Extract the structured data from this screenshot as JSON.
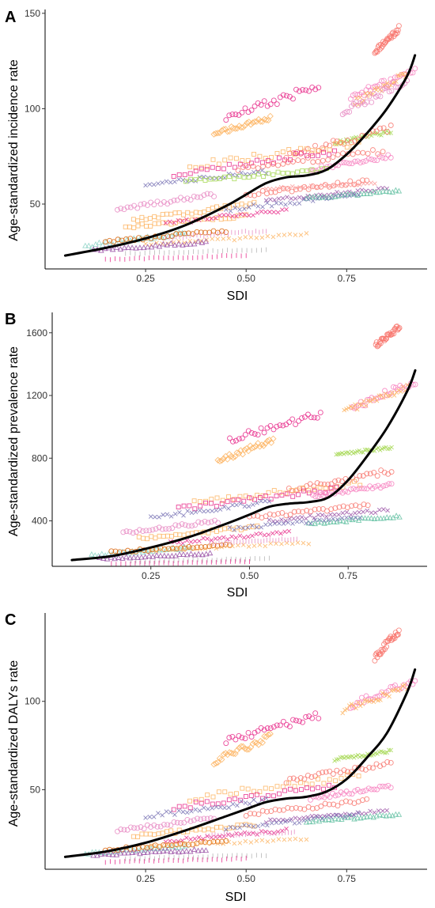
{
  "palette": [
    "#f8766d",
    "#fb9a99",
    "#e7298a",
    "#f781bf",
    "#fdb462",
    "#ff7f00",
    "#a6d854",
    "#8dd3c7",
    "#b3b3b3",
    "#984ea3",
    "#7570b3",
    "#e78ac3",
    "#d95f02",
    "#66c2a5"
  ],
  "fit_color": "#000000",
  "chart_data": [
    {
      "panel": "A",
      "type": "scatter",
      "xlabel": "SDI",
      "ylabel": "Age-standardized incidence rate",
      "xlim": [
        0.0,
        0.95
      ],
      "ylim": [
        16,
        152
      ],
      "xticks": [
        0.25,
        0.5,
        0.75
      ],
      "xtick_labels": [
        "0.25",
        "0.50",
        "0.75"
      ],
      "yticks": [
        50,
        100,
        150
      ],
      "ytick_labels": [
        "50",
        "100",
        "150"
      ],
      "grid": false,
      "fit": {
        "x": [
          0.05,
          0.15,
          0.25,
          0.35,
          0.45,
          0.5,
          0.55,
          0.6,
          0.65,
          0.7,
          0.75,
          0.8,
          0.85,
          0.9,
          0.92
        ],
        "y": [
          23,
          27,
          32,
          39,
          49,
          55,
          61,
          64,
          65,
          68,
          76,
          87,
          100,
          117,
          128
        ]
      },
      "series": [
        {
          "x0": 0.82,
          "x1": 0.88,
          "y0": 130,
          "y1": 142,
          "marker": "circle",
          "color": "#f8766d"
        },
        {
          "x0": 0.76,
          "x1": 0.92,
          "y0": 106,
          "y1": 120,
          "marker": "circle",
          "color": "#f781bf"
        },
        {
          "x0": 0.77,
          "x1": 0.9,
          "y0": 103,
          "y1": 118,
          "marker": "cross",
          "color": "#fdb462"
        },
        {
          "x0": 0.74,
          "x1": 0.9,
          "y0": 98,
          "y1": 115,
          "marker": "circle",
          "color": "#e78ac3"
        },
        {
          "x0": 0.45,
          "x1": 0.68,
          "y0": 95,
          "y1": 112,
          "marker": "circle",
          "color": "#e7298a"
        },
        {
          "x0": 0.72,
          "x1": 0.86,
          "y0": 82,
          "y1": 88,
          "marker": "cross",
          "color": "#a6d854"
        },
        {
          "x0": 0.42,
          "x1": 0.56,
          "y0": 87,
          "y1": 95,
          "marker": "diamond",
          "color": "#fdb462"
        },
        {
          "x0": 0.6,
          "x1": 0.86,
          "y0": 75,
          "y1": 90,
          "marker": "circle",
          "color": "#f8766d"
        },
        {
          "x0": 0.36,
          "x1": 0.78,
          "y0": 70,
          "y1": 82,
          "marker": "square",
          "color": "#fdb462"
        },
        {
          "x0": 0.32,
          "x1": 0.72,
          "y0": 65,
          "y1": 78,
          "marker": "square",
          "color": "#e7298a"
        },
        {
          "x0": 0.48,
          "x1": 0.84,
          "y0": 68,
          "y1": 78,
          "marker": "circle",
          "color": "#f8766d"
        },
        {
          "x0": 0.66,
          "x1": 0.86,
          "y0": 68,
          "y1": 75,
          "marker": "circle",
          "color": "#f781bf"
        },
        {
          "x0": 0.25,
          "x1": 0.55,
          "y0": 60,
          "y1": 67,
          "marker": "cross",
          "color": "#7570b3"
        },
        {
          "x0": 0.35,
          "x1": 0.7,
          "y0": 62,
          "y1": 68,
          "marker": "square",
          "color": "#a6d854"
        },
        {
          "x0": 0.5,
          "x1": 0.8,
          "y0": 55,
          "y1": 62,
          "marker": "circle",
          "color": "#f8766d"
        },
        {
          "x0": 0.55,
          "x1": 0.85,
          "y0": 52,
          "y1": 58,
          "marker": "cross",
          "color": "#984ea3"
        },
        {
          "x0": 0.65,
          "x1": 0.88,
          "y0": 53,
          "y1": 57,
          "marker": "triangle",
          "color": "#66c2a5"
        },
        {
          "x0": 0.55,
          "x1": 0.82,
          "y0": 58,
          "y1": 61,
          "marker": "cross",
          "color": "#fb9a99"
        },
        {
          "x0": 0.18,
          "x1": 0.42,
          "y0": 47,
          "y1": 55,
          "marker": "circle",
          "color": "#e78ac3"
        },
        {
          "x0": 0.22,
          "x1": 0.52,
          "y0": 42,
          "y1": 50,
          "marker": "square",
          "color": "#fdb462"
        },
        {
          "x0": 0.2,
          "x1": 0.5,
          "y0": 38,
          "y1": 44,
          "marker": "square",
          "color": "#fdb462"
        },
        {
          "x0": 0.3,
          "x1": 0.6,
          "y0": 40,
          "y1": 47,
          "marker": "cross",
          "color": "#e7298a"
        },
        {
          "x0": 0.45,
          "x1": 0.78,
          "y0": 47,
          "y1": 55,
          "marker": "cross",
          "color": "#7570b3"
        },
        {
          "x0": 0.1,
          "x1": 0.35,
          "y0": 28,
          "y1": 35,
          "marker": "triangle",
          "color": "#8dd3c7"
        },
        {
          "x0": 0.15,
          "x1": 0.45,
          "y0": 30,
          "y1": 36,
          "marker": "circle",
          "color": "#d95f02"
        },
        {
          "x0": 0.25,
          "x1": 0.65,
          "y0": 29,
          "y1": 34,
          "marker": "cross",
          "color": "#fdb462"
        },
        {
          "x0": 0.12,
          "x1": 0.4,
          "y0": 26,
          "y1": 30,
          "marker": "triangle",
          "color": "#984ea3"
        },
        {
          "x0": 0.2,
          "x1": 0.55,
          "y0": 24,
          "y1": 26,
          "marker": "pipe",
          "color": "#b3b3b3"
        },
        {
          "x0": 0.15,
          "x1": 0.5,
          "y0": 21,
          "y1": 23,
          "marker": "pipe",
          "color": "#e7298a"
        },
        {
          "x0": 0.3,
          "x1": 0.55,
          "y0": 32,
          "y1": 36,
          "marker": "pipe",
          "color": "#e78ac3"
        }
      ]
    },
    {
      "panel": "B",
      "type": "scatter",
      "xlabel": "SDI",
      "ylabel": "Age-standardized prevalence rate",
      "xlim": [
        0.0,
        0.95
      ],
      "ylim": [
        110,
        1730
      ],
      "xticks": [
        0.25,
        0.5,
        0.75
      ],
      "xtick_labels": [
        "0.25",
        "0.50",
        "0.75"
      ],
      "yticks": [
        400,
        800,
        1200,
        1600
      ],
      "ytick_labels": [
        "400",
        "800",
        "1200",
        "1600"
      ],
      "grid": false,
      "fit": {
        "x": [
          0.05,
          0.15,
          0.25,
          0.35,
          0.45,
          0.5,
          0.55,
          0.6,
          0.65,
          0.7,
          0.75,
          0.8,
          0.85,
          0.9,
          0.92
        ],
        "y": [
          150,
          175,
          230,
          300,
          390,
          440,
          490,
          510,
          520,
          550,
          660,
          820,
          1000,
          1230,
          1360
        ]
      },
      "series": [
        {
          "x0": 0.82,
          "x1": 0.88,
          "y0": 1520,
          "y1": 1640,
          "marker": "circle",
          "color": "#f8766d"
        },
        {
          "x0": 0.76,
          "x1": 0.92,
          "y0": 1120,
          "y1": 1290,
          "marker": "circle",
          "color": "#f781bf"
        },
        {
          "x0": 0.74,
          "x1": 0.9,
          "y0": 1100,
          "y1": 1250,
          "marker": "cross",
          "color": "#fdb462"
        },
        {
          "x0": 0.45,
          "x1": 0.68,
          "y0": 920,
          "y1": 1080,
          "marker": "circle",
          "color": "#e7298a"
        },
        {
          "x0": 0.42,
          "x1": 0.56,
          "y0": 780,
          "y1": 920,
          "marker": "diamond",
          "color": "#fdb462"
        },
        {
          "x0": 0.72,
          "x1": 0.86,
          "y0": 820,
          "y1": 870,
          "marker": "cross",
          "color": "#a6d854"
        },
        {
          "x0": 0.6,
          "x1": 0.86,
          "y0": 600,
          "y1": 720,
          "marker": "circle",
          "color": "#f8766d"
        },
        {
          "x0": 0.36,
          "x1": 0.78,
          "y0": 520,
          "y1": 640,
          "marker": "square",
          "color": "#fdb462"
        },
        {
          "x0": 0.32,
          "x1": 0.72,
          "y0": 480,
          "y1": 600,
          "marker": "square",
          "color": "#e7298a"
        },
        {
          "x0": 0.66,
          "x1": 0.86,
          "y0": 560,
          "y1": 630,
          "marker": "circle",
          "color": "#f781bf"
        },
        {
          "x0": 0.25,
          "x1": 0.55,
          "y0": 420,
          "y1": 520,
          "marker": "cross",
          "color": "#7570b3"
        },
        {
          "x0": 0.5,
          "x1": 0.8,
          "y0": 420,
          "y1": 500,
          "marker": "circle",
          "color": "#f8766d"
        },
        {
          "x0": 0.55,
          "x1": 0.85,
          "y0": 400,
          "y1": 470,
          "marker": "cross",
          "color": "#984ea3"
        },
        {
          "x0": 0.65,
          "x1": 0.88,
          "y0": 380,
          "y1": 430,
          "marker": "triangle",
          "color": "#66c2a5"
        },
        {
          "x0": 0.18,
          "x1": 0.42,
          "y0": 320,
          "y1": 400,
          "marker": "circle",
          "color": "#e78ac3"
        },
        {
          "x0": 0.22,
          "x1": 0.52,
          "y0": 290,
          "y1": 360,
          "marker": "square",
          "color": "#fdb462"
        },
        {
          "x0": 0.3,
          "x1": 0.6,
          "y0": 260,
          "y1": 330,
          "marker": "cross",
          "color": "#e7298a"
        },
        {
          "x0": 0.45,
          "x1": 0.78,
          "y0": 350,
          "y1": 420,
          "marker": "cross",
          "color": "#7570b3"
        },
        {
          "x0": 0.1,
          "x1": 0.35,
          "y0": 180,
          "y1": 230,
          "marker": "triangle",
          "color": "#8dd3c7"
        },
        {
          "x0": 0.15,
          "x1": 0.45,
          "y0": 200,
          "y1": 250,
          "marker": "circle",
          "color": "#d95f02"
        },
        {
          "x0": 0.25,
          "x1": 0.65,
          "y0": 210,
          "y1": 260,
          "marker": "cross",
          "color": "#fdb462"
        },
        {
          "x0": 0.12,
          "x1": 0.4,
          "y0": 160,
          "y1": 190,
          "marker": "triangle",
          "color": "#984ea3"
        },
        {
          "x0": 0.2,
          "x1": 0.55,
          "y0": 140,
          "y1": 160,
          "marker": "pipe",
          "color": "#b3b3b3"
        },
        {
          "x0": 0.15,
          "x1": 0.5,
          "y0": 125,
          "y1": 140,
          "marker": "pipe",
          "color": "#e7298a"
        },
        {
          "x0": 0.4,
          "x1": 0.62,
          "y0": 255,
          "y1": 285,
          "marker": "pipe",
          "color": "#e78ac3"
        }
      ]
    },
    {
      "panel": "C",
      "type": "scatter",
      "xlabel": "SDI",
      "ylabel": "Age-standardized DALYs rate",
      "xlim": [
        0.0,
        0.95
      ],
      "ylim": [
        5,
        150
      ],
      "xticks": [
        0.25,
        0.5,
        0.75
      ],
      "xtick_labels": [
        "0.25",
        "0.50",
        "0.75"
      ],
      "yticks": [
        50,
        100
      ],
      "ytick_labels": [
        "50",
        "100"
      ],
      "grid": false,
      "fit": {
        "x": [
          0.05,
          0.15,
          0.25,
          0.35,
          0.45,
          0.5,
          0.55,
          0.6,
          0.65,
          0.7,
          0.75,
          0.8,
          0.85,
          0.9,
          0.92
        ],
        "y": [
          12,
          15,
          20,
          27,
          35,
          39,
          43,
          45,
          46,
          49,
          56,
          68,
          82,
          105,
          118
        ]
      },
      "series": [
        {
          "x0": 0.82,
          "x1": 0.88,
          "y0": 125,
          "y1": 140,
          "marker": "circle",
          "color": "#f8766d"
        },
        {
          "x0": 0.76,
          "x1": 0.92,
          "y0": 98,
          "y1": 112,
          "marker": "circle",
          "color": "#f781bf"
        },
        {
          "x0": 0.74,
          "x1": 0.9,
          "y0": 95,
          "y1": 108,
          "marker": "cross",
          "color": "#fdb462"
        },
        {
          "x0": 0.45,
          "x1": 0.68,
          "y0": 78,
          "y1": 92,
          "marker": "circle",
          "color": "#e7298a"
        },
        {
          "x0": 0.42,
          "x1": 0.56,
          "y0": 66,
          "y1": 80,
          "marker": "diamond",
          "color": "#fdb462"
        },
        {
          "x0": 0.72,
          "x1": 0.86,
          "y0": 67,
          "y1": 72,
          "marker": "cross",
          "color": "#a6d854"
        },
        {
          "x0": 0.6,
          "x1": 0.86,
          "y0": 55,
          "y1": 65,
          "marker": "circle",
          "color": "#f8766d"
        },
        {
          "x0": 0.36,
          "x1": 0.78,
          "y0": 45,
          "y1": 58,
          "marker": "square",
          "color": "#fdb462"
        },
        {
          "x0": 0.32,
          "x1": 0.72,
          "y0": 40,
          "y1": 52,
          "marker": "square",
          "color": "#e7298a"
        },
        {
          "x0": 0.66,
          "x1": 0.86,
          "y0": 45,
          "y1": 52,
          "marker": "circle",
          "color": "#f781bf"
        },
        {
          "x0": 0.25,
          "x1": 0.55,
          "y0": 35,
          "y1": 44,
          "marker": "cross",
          "color": "#7570b3"
        },
        {
          "x0": 0.5,
          "x1": 0.8,
          "y0": 36,
          "y1": 44,
          "marker": "circle",
          "color": "#f8766d"
        },
        {
          "x0": 0.55,
          "x1": 0.85,
          "y0": 32,
          "y1": 38,
          "marker": "cross",
          "color": "#984ea3"
        },
        {
          "x0": 0.65,
          "x1": 0.88,
          "y0": 32,
          "y1": 36,
          "marker": "triangle",
          "color": "#66c2a5"
        },
        {
          "x0": 0.18,
          "x1": 0.42,
          "y0": 27,
          "y1": 34,
          "marker": "circle",
          "color": "#e78ac3"
        },
        {
          "x0": 0.22,
          "x1": 0.52,
          "y0": 24,
          "y1": 30,
          "marker": "square",
          "color": "#fdb462"
        },
        {
          "x0": 0.3,
          "x1": 0.6,
          "y0": 21,
          "y1": 27,
          "marker": "cross",
          "color": "#e7298a"
        },
        {
          "x0": 0.45,
          "x1": 0.78,
          "y0": 28,
          "y1": 36,
          "marker": "cross",
          "color": "#7570b3"
        },
        {
          "x0": 0.1,
          "x1": 0.35,
          "y0": 14,
          "y1": 18,
          "marker": "triangle",
          "color": "#8dd3c7"
        },
        {
          "x0": 0.15,
          "x1": 0.45,
          "y0": 16,
          "y1": 21,
          "marker": "circle",
          "color": "#d95f02"
        },
        {
          "x0": 0.25,
          "x1": 0.65,
          "y0": 18,
          "y1": 22,
          "marker": "cross",
          "color": "#fdb462"
        },
        {
          "x0": 0.12,
          "x1": 0.4,
          "y0": 13,
          "y1": 16,
          "marker": "triangle",
          "color": "#984ea3"
        },
        {
          "x0": 0.2,
          "x1": 0.55,
          "y0": 11,
          "y1": 13,
          "marker": "pipe",
          "color": "#b3b3b3"
        },
        {
          "x0": 0.15,
          "x1": 0.5,
          "y0": 9,
          "y1": 11,
          "marker": "pipe",
          "color": "#e7298a"
        },
        {
          "x0": 0.4,
          "x1": 0.62,
          "y0": 24,
          "y1": 26,
          "marker": "pipe",
          "color": "#e78ac3"
        }
      ]
    }
  ]
}
